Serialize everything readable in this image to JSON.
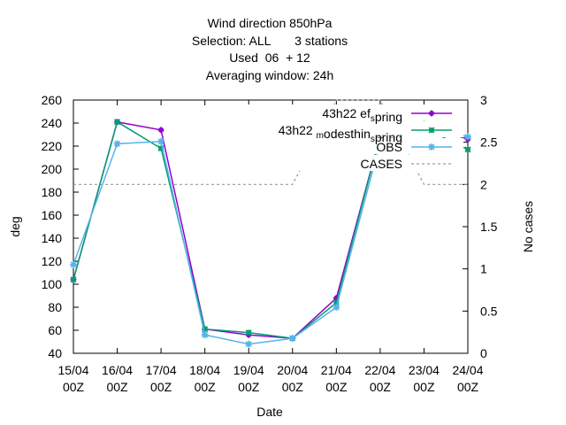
{
  "chart_data": {
    "type": "line",
    "title": [
      "Wind direction 850hPa",
      "Selection: ALL       3 stations",
      "Used  06  + 12",
      "Averaging window: 24h"
    ],
    "xlabel": "Date",
    "ylabel": "deg",
    "y2label": "No cases",
    "categories": [
      [
        "15/04",
        "00Z"
      ],
      [
        "16/04",
        "00Z"
      ],
      [
        "17/04",
        "00Z"
      ],
      [
        "18/04",
        "00Z"
      ],
      [
        "19/04",
        "00Z"
      ],
      [
        "20/04",
        "00Z"
      ],
      [
        "21/04",
        "00Z"
      ],
      [
        "22/04",
        "00Z"
      ],
      [
        "23/04",
        "00Z"
      ],
      [
        "24/04",
        "00Z"
      ]
    ],
    "ylim": [
      40,
      260
    ],
    "yticks": [
      40,
      60,
      80,
      100,
      120,
      140,
      160,
      180,
      200,
      220,
      240,
      260
    ],
    "y2lim": [
      0,
      3
    ],
    "y2ticks": [
      "0",
      "0.5",
      "1",
      "1.5",
      "2",
      "2.5",
      "3"
    ],
    "y2tick_values": [
      0,
      0.5,
      1,
      1.5,
      2,
      2.5,
      3
    ],
    "grid": false,
    "legend_position": "top-right",
    "series": [
      {
        "name": "43h22 ef s pring",
        "legend_parts": [
          [
            "43h22 ",
            "n"
          ],
          [
            "ef",
            "n"
          ],
          [
            "s",
            "sub"
          ],
          [
            "pring",
            "n"
          ]
        ],
        "color": "#9400d3",
        "marker": "plus",
        "axis": "y",
        "values": [
          104,
          241,
          234,
          61,
          56,
          53,
          88,
          229,
          238,
          226
        ]
      },
      {
        "name": "43h22 m odesthin s pring",
        "legend_parts": [
          [
            "43h22 ",
            "n"
          ],
          [
            "m",
            "sub"
          ],
          [
            "odesthin",
            "n"
          ],
          [
            "s",
            "sub"
          ],
          [
            "pring",
            "n"
          ]
        ],
        "color": "#009e73",
        "marker": "x",
        "axis": "y",
        "values": [
          104,
          241,
          218,
          61,
          58,
          53,
          84,
          229,
          236,
          217
        ]
      },
      {
        "name": "OBS",
        "legend_parts": [
          [
            "OBS",
            "n"
          ]
        ],
        "color": "#56b4e9",
        "marker": "star",
        "axis": "y",
        "values": [
          117,
          222,
          224,
          56,
          48,
          53,
          80,
          223,
          239,
          228
        ]
      },
      {
        "name": "CASES",
        "legend_parts": [
          [
            "CASES",
            "n"
          ]
        ],
        "color": "#999999",
        "dashed": true,
        "axis": "y2",
        "values": [
          2,
          2,
          2,
          2,
          2,
          2,
          3,
          3,
          2,
          2
        ]
      }
    ]
  }
}
